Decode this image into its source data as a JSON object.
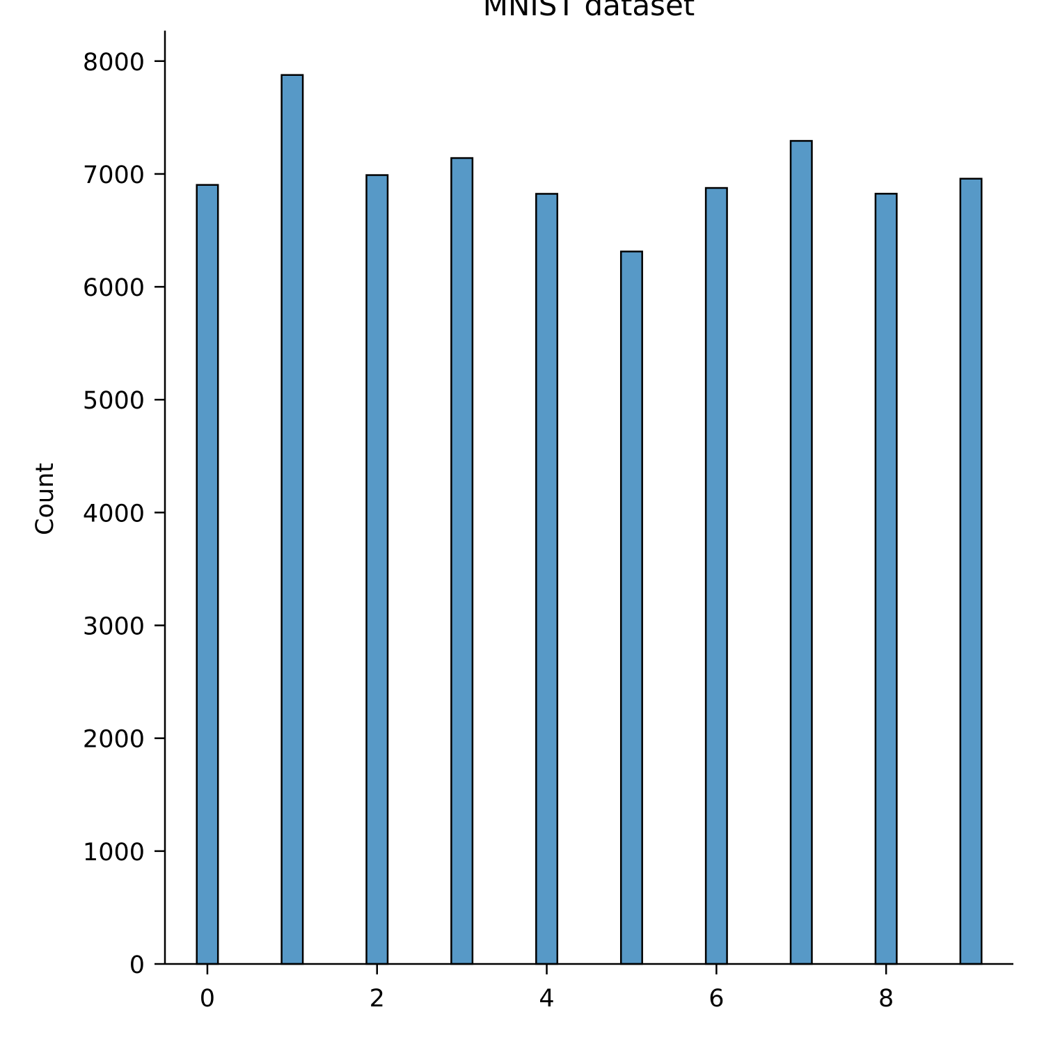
{
  "chart_data": {
    "type": "bar",
    "title": "MNIST dataset",
    "xlabel": "",
    "ylabel": "Count",
    "x": [
      0,
      1,
      2,
      3,
      4,
      5,
      6,
      7,
      8,
      9
    ],
    "values": [
      6903,
      7877,
      6990,
      7141,
      6824,
      6313,
      6876,
      7293,
      6825,
      6958
    ],
    "xlim": [
      -0.5,
      9.5
    ],
    "ylim": [
      0,
      8270
    ],
    "xticks": [
      0,
      2,
      4,
      6,
      8
    ],
    "yticks": [
      0,
      1000,
      2000,
      3000,
      4000,
      5000,
      6000,
      7000,
      8000
    ],
    "bar_width": 0.25,
    "grid": false,
    "legend": "none",
    "colors": {
      "bar_fill": "#5799c7",
      "bar_edge": "#000000",
      "axis": "#000000",
      "background": "#ffffff"
    }
  }
}
